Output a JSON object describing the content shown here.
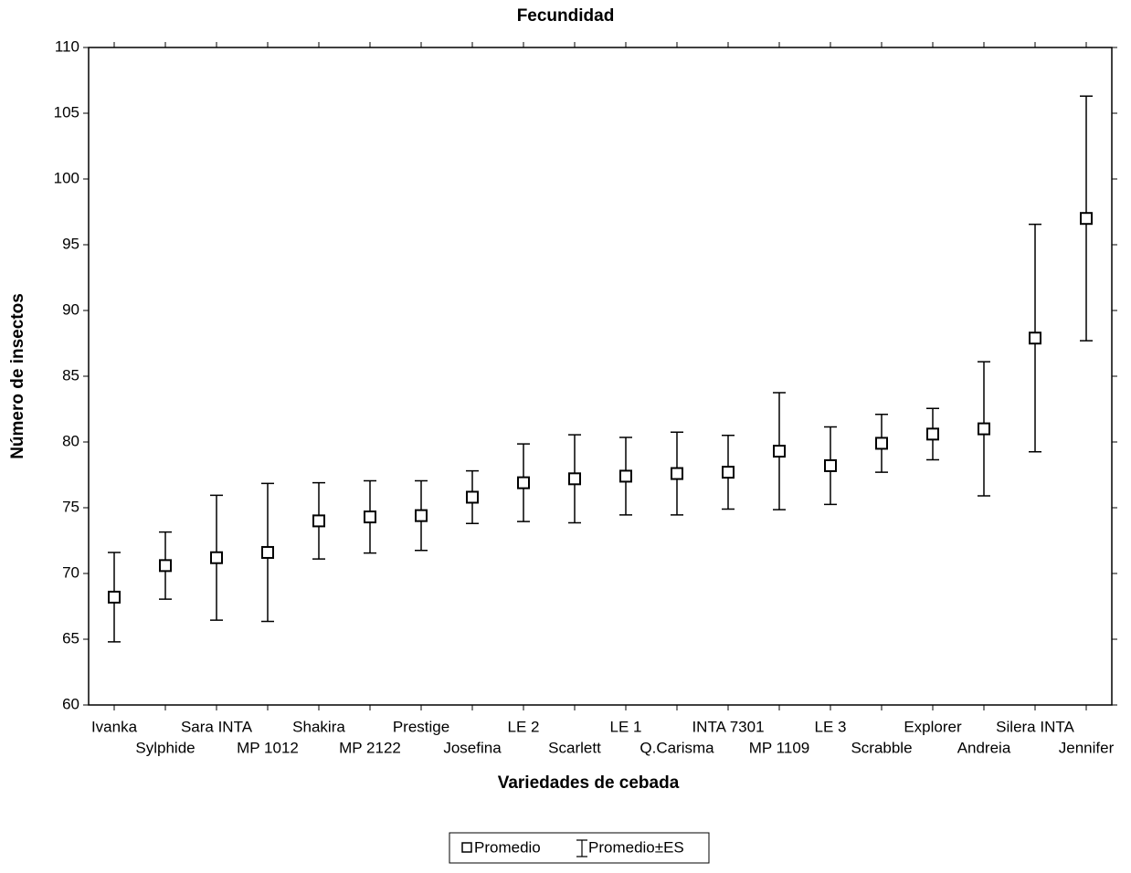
{
  "chart_data": {
    "type": "errorbar",
    "title": "Fecundidad",
    "x_label": "Variedades de cebada",
    "y_label": "Número de insectos",
    "categories": [
      "Ivanka",
      "Sylphide",
      "Sara INTA",
      "MP 1012",
      "Shakira",
      "MP 2122",
      "Prestige",
      "Josefina",
      "LE 2",
      "Scarlett",
      "LE 1",
      "Q.Carisma",
      "INTA 7301",
      "MP 1109",
      "LE 3",
      "Scrabble",
      "Explorer",
      "Andreia",
      "Silera INTA",
      "Jennifer"
    ],
    "series": [
      {
        "name": "Promedio",
        "error_name": "Promedio±ES",
        "color": "#000000",
        "values": [
          68.2,
          70.6,
          71.2,
          71.6,
          74.0,
          74.3,
          74.4,
          75.8,
          76.9,
          77.2,
          77.4,
          77.6,
          77.7,
          79.3,
          78.2,
          79.9,
          80.6,
          81.0,
          87.9,
          97.0
        ],
        "errors": [
          3.4,
          2.55,
          4.75,
          5.25,
          2.9,
          2.75,
          2.65,
          2.0,
          2.95,
          3.35,
          2.95,
          3.15,
          2.8,
          4.45,
          2.95,
          2.2,
          1.95,
          5.1,
          8.65,
          9.3
        ]
      }
    ],
    "ylim": [
      60,
      110
    ],
    "yticks": [
      60,
      65,
      70,
      75,
      80,
      85,
      90,
      95,
      100,
      105,
      110
    ],
    "grid": false
  }
}
